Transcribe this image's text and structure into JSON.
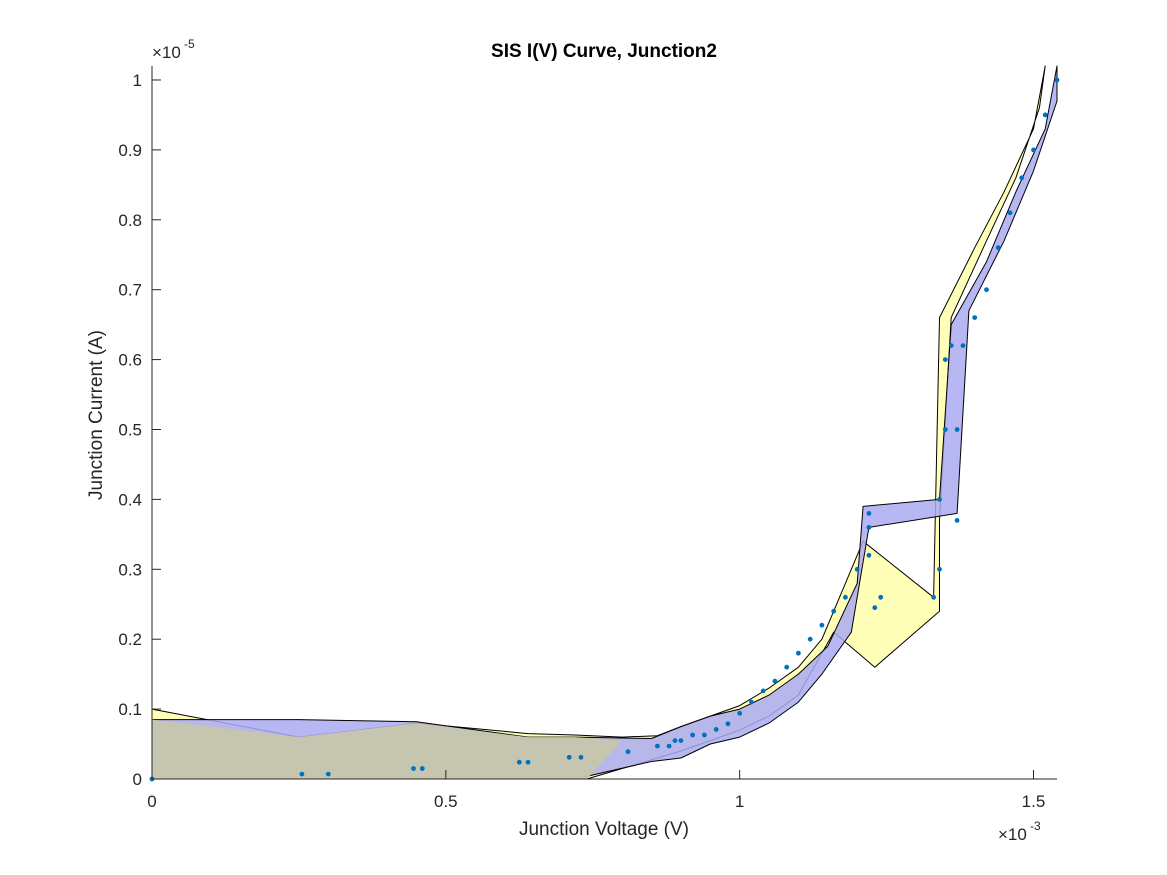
{
  "chart_data": {
    "type": "scatter",
    "title": "SIS I(V) Curve, Junction2",
    "xlabel": "Junction Voltage (V)",
    "ylabel": "Junction Current (A)",
    "x_exponent_base": "×10",
    "x_exponent_power": "-3",
    "y_exponent_base": "×10",
    "y_exponent_power": "-5",
    "xlim": [
      0,
      1.54
    ],
    "ylim": [
      0,
      1.02
    ],
    "x_ticks": [
      0,
      0.5,
      1,
      1.5
    ],
    "x_tick_labels": [
      "0",
      "0.5",
      "1",
      "1.5"
    ],
    "y_ticks": [
      0,
      0.1,
      0.2,
      0.3,
      0.4,
      0.5,
      0.6,
      0.7,
      0.8,
      0.9,
      1
    ],
    "y_tick_labels": [
      "0",
      "0.1",
      "0.2",
      "0.3",
      "0.4",
      "0.5",
      "0.6",
      "0.7",
      "0.8",
      "0.9",
      "1"
    ],
    "grid": false,
    "colors": {
      "points": "#0072BD",
      "band_a": "#FFFFAA",
      "band_b": "#AAAAF2",
      "band_edge": "#000000",
      "overlap": "#C6C6AD"
    },
    "bands": [
      {
        "color": "#FFFFAA",
        "points": [
          [
            0,
            0.1
          ],
          [
            0.25,
            0.06
          ],
          [
            0.45,
            0.08
          ],
          [
            0.64,
            0.065
          ],
          [
            0.72,
            0.063
          ],
          [
            0.8,
            0.06
          ],
          [
            0.86,
            0.062
          ],
          [
            0.9,
            0.075
          ],
          [
            0.95,
            0.09
          ],
          [
            1.0,
            0.105
          ],
          [
            1.05,
            0.13
          ],
          [
            1.1,
            0.16
          ],
          [
            1.14,
            0.2
          ],
          [
            1.19,
            0.3
          ],
          [
            1.21,
            0.34
          ],
          [
            1.33,
            0.26
          ],
          [
            1.34,
            0.66
          ],
          [
            1.4,
            0.76
          ],
          [
            1.45,
            0.84
          ],
          [
            1.5,
            0.93
          ],
          [
            1.52,
            1.02
          ],
          [
            1.51,
            0.96
          ],
          [
            1.47,
            0.86
          ],
          [
            1.42,
            0.77
          ],
          [
            1.36,
            0.66
          ],
          [
            1.34,
            0.37
          ],
          [
            1.34,
            0.24
          ],
          [
            1.23,
            0.16
          ],
          [
            1.16,
            0.21
          ],
          [
            1.1,
            0.12
          ],
          [
            1.05,
            0.09
          ],
          [
            1.0,
            0.07
          ],
          [
            0.95,
            0.055
          ],
          [
            0.9,
            0.04
          ],
          [
            0.8,
            0.015
          ],
          [
            0.74,
            0.0
          ],
          [
            0,
            0
          ]
        ]
      },
      {
        "color": "#AAAAF2",
        "points": [
          [
            0,
            0.085
          ],
          [
            0.25,
            0.085
          ],
          [
            0.45,
            0.082
          ],
          [
            0.64,
            0.06
          ],
          [
            0.72,
            0.06
          ],
          [
            0.85,
            0.058
          ],
          [
            0.9,
            0.075
          ],
          [
            0.95,
            0.09
          ],
          [
            1.0,
            0.1
          ],
          [
            1.05,
            0.12
          ],
          [
            1.1,
            0.15
          ],
          [
            1.15,
            0.19
          ],
          [
            1.2,
            0.28
          ],
          [
            1.21,
            0.39
          ],
          [
            1.34,
            0.4
          ],
          [
            1.36,
            0.65
          ],
          [
            1.42,
            0.74
          ],
          [
            1.47,
            0.84
          ],
          [
            1.52,
            0.93
          ],
          [
            1.54,
            1.02
          ],
          [
            1.54,
            0.97
          ],
          [
            1.5,
            0.87
          ],
          [
            1.45,
            0.77
          ],
          [
            1.39,
            0.67
          ],
          [
            1.37,
            0.38
          ],
          [
            1.22,
            0.36
          ],
          [
            1.19,
            0.21
          ],
          [
            1.14,
            0.15
          ],
          [
            1.1,
            0.11
          ],
          [
            1.05,
            0.08
          ],
          [
            1.0,
            0.06
          ],
          [
            0.95,
            0.05
          ],
          [
            0.9,
            0.03
          ],
          [
            0.85,
            0.025
          ],
          [
            0.72,
            0.0
          ],
          [
            0,
            0
          ]
        ]
      }
    ],
    "overlap_region": [
      [
        0,
        0.085
      ],
      [
        0.25,
        0.06
      ],
      [
        0.45,
        0.08
      ],
      [
        0.64,
        0.06
      ],
      [
        0.72,
        0.06
      ],
      [
        0.8,
        0.055
      ],
      [
        0.74,
        0.0
      ],
      [
        0,
        0
      ]
    ],
    "series": [
      {
        "x": [
          0,
          0.255,
          0.3,
          0.445,
          0.46,
          0.625,
          0.64,
          0.71,
          0.73,
          0.81,
          0.86,
          0.88,
          0.89,
          0.9,
          0.92,
          0.94,
          0.96,
          0.98,
          1.0,
          1.02,
          1.04,
          1.06,
          1.08,
          1.1,
          1.12,
          1.14,
          1.16,
          1.18,
          1.2,
          1.22,
          1.22,
          1.22,
          1.23,
          1.24,
          1.33,
          1.34,
          1.34,
          1.35,
          1.35,
          1.36,
          1.37,
          1.37,
          1.38,
          1.4,
          1.42,
          1.44,
          1.46,
          1.48,
          1.5,
          1.52,
          1.54
        ],
        "y": [
          0,
          0.007,
          0.007,
          0.015,
          0.015,
          0.024,
          0.024,
          0.031,
          0.031,
          0.039,
          0.047,
          0.047,
          0.055,
          0.055,
          0.063,
          0.063,
          0.071,
          0.079,
          0.094,
          0.11,
          0.126,
          0.14,
          0.16,
          0.18,
          0.2,
          0.22,
          0.24,
          0.26,
          0.3,
          0.32,
          0.36,
          0.38,
          0.245,
          0.26,
          0.26,
          0.3,
          0.4,
          0.5,
          0.6,
          0.62,
          0.37,
          0.5,
          0.62,
          0.66,
          0.7,
          0.76,
          0.81,
          0.86,
          0.9,
          0.95,
          1.0
        ]
      }
    ]
  }
}
